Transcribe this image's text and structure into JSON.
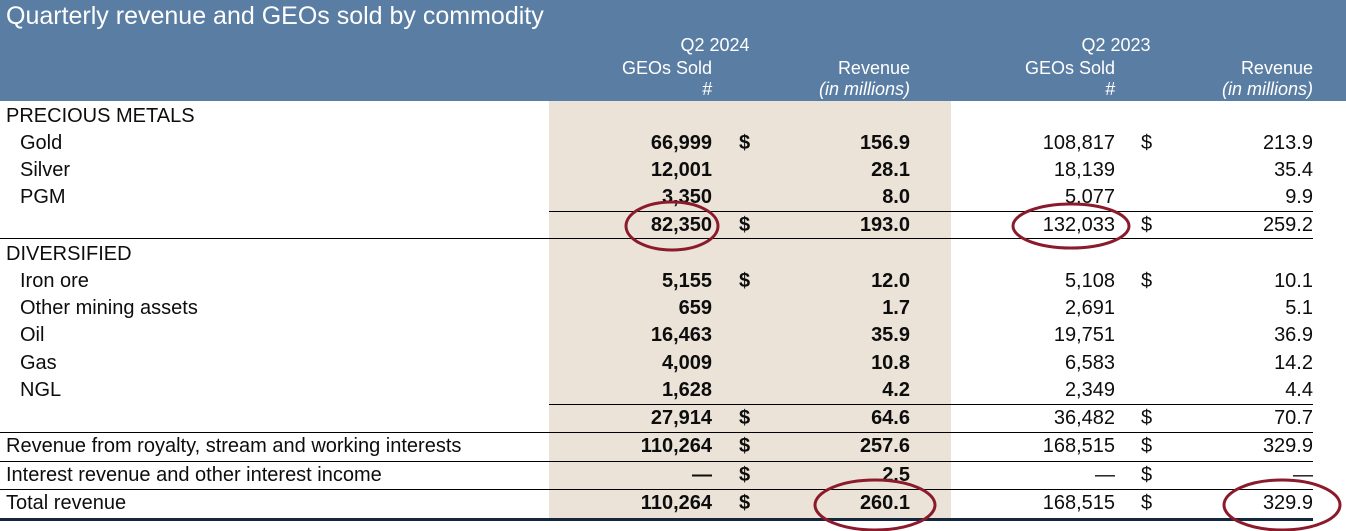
{
  "title": "Quarterly revenue and GEOs sold by commodity",
  "columns": {
    "period_2024": "Q2 2024",
    "period_2023": "Q2 2023",
    "geos_label": "GEOs Sold",
    "geos_unit": "#",
    "rev_label": "Revenue",
    "rev_unit": "(in millions)"
  },
  "sections": {
    "precious": "PRECIOUS METALS",
    "diversified": "DIVERSIFIED"
  },
  "rows": [
    {
      "label": "Gold",
      "g24": "66,999",
      "d24": "$",
      "r24": "156.9",
      "g23": "108,817",
      "d23": "$",
      "r23": "213.9"
    },
    {
      "label": "Silver",
      "g24": "12,001",
      "d24": "",
      "r24": "28.1",
      "g23": "18,139",
      "d23": "",
      "r23": "35.4"
    },
    {
      "label": "PGM",
      "g24": "3,350",
      "d24": "",
      "r24": "8.0",
      "g23": "5,077",
      "d23": "",
      "r23": "9.9"
    },
    {
      "label": "",
      "g24": "82,350",
      "d24": "$",
      "r24": "193.0",
      "g23": "132,033",
      "d23": "$",
      "r23": "259.2"
    },
    {
      "label": "Iron ore",
      "g24": "5,155",
      "d24": "$",
      "r24": "12.0",
      "g23": "5,108",
      "d23": "$",
      "r23": "10.1"
    },
    {
      "label": "Other mining assets",
      "g24": "659",
      "d24": "",
      "r24": "1.7",
      "g23": "2,691",
      "d23": "",
      "r23": "5.1"
    },
    {
      "label": "Oil",
      "g24": "16,463",
      "d24": "",
      "r24": "35.9",
      "g23": "19,751",
      "d23": "",
      "r23": "36.9"
    },
    {
      "label": "Gas",
      "g24": "4,009",
      "d24": "",
      "r24": "10.8",
      "g23": "6,583",
      "d23": "",
      "r23": "14.2"
    },
    {
      "label": "NGL",
      "g24": "1,628",
      "d24": "",
      "r24": "4.2",
      "g23": "2,349",
      "d23": "",
      "r23": "4.4"
    },
    {
      "label": "",
      "g24": "27,914",
      "d24": "$",
      "r24": "64.6",
      "g23": "36,482",
      "d23": "$",
      "r23": "70.7"
    },
    {
      "label": "Revenue from royalty, stream and working interests",
      "g24": "110,264",
      "d24": "$",
      "r24": "257.6",
      "g23": "168,515",
      "d23": "$",
      "r23": "329.9"
    },
    {
      "label": "Interest revenue and other interest income",
      "g24": "—",
      "d24": "$",
      "r24": "2.5",
      "g23": "—",
      "d23": "$",
      "r23": "—"
    },
    {
      "label": "Total revenue",
      "g24": "110,264",
      "d24": "$",
      "r24": "260.1",
      "g23": "168,515",
      "d23": "$",
      "r23": "329.9"
    }
  ],
  "colors": {
    "header": "#5a7da3",
    "shade": "#ebe3d8",
    "circle": "#8b1a2b"
  }
}
